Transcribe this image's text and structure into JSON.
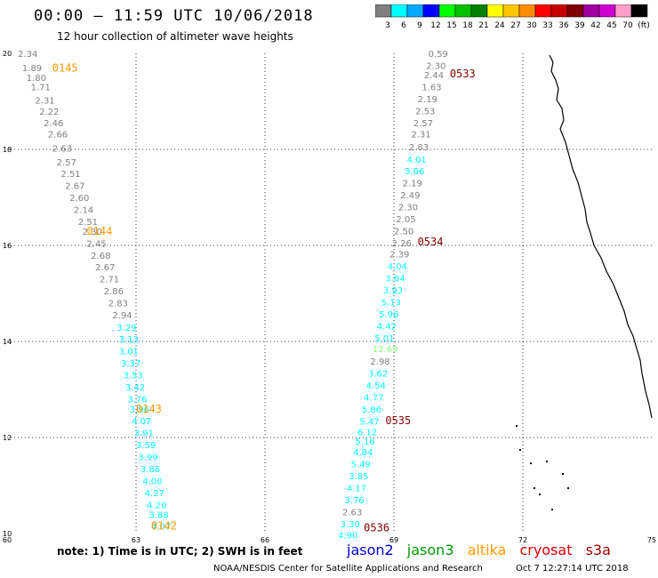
{
  "header": {
    "title": "00:00 — 11:59 UTC 10/06/2018",
    "subtitle": "12 hour collection of altimeter wave heights"
  },
  "color_scale": {
    "labels": [
      "3",
      "6",
      "9",
      "12",
      "15",
      "18",
      "21",
      "24",
      "27",
      "30",
      "33",
      "36",
      "39",
      "42",
      "45",
      "70",
      "(ft)"
    ],
    "colors": [
      "#808080",
      "#00ffff",
      "#00a8ff",
      "#0000ff",
      "#00ff00",
      "#00c000",
      "#008000",
      "#ffff00",
      "#ffc800",
      "#ff8c00",
      "#ff0000",
      "#c80000",
      "#800000",
      "#a000a0",
      "#d000d0",
      "#ff9ec8",
      "#000000"
    ]
  },
  "footer": {
    "note": "note: 1) Time is in UTC; 2) SWH is in feet",
    "credit": "NOAA/NESDIS Center for Satellite Applications and Research",
    "timestamp": "Oct  7 12:27:14 UTC 2018",
    "legend": [
      {
        "name": "jason2",
        "color": "#0000cc"
      },
      {
        "name": "jason3",
        "color": "#009900"
      },
      {
        "name": "altika",
        "color": "#ff9900"
      },
      {
        "name": "cryosat",
        "color": "#dd0000"
      },
      {
        "name": "s3a",
        "color": "#990000"
      }
    ]
  },
  "chart_data": {
    "type": "scatter",
    "title": "00:00 — 11:59 UTC 10/06/2018",
    "subtitle": "12 hour collection of altimeter wave heights",
    "xlim": [
      60,
      75
    ],
    "ylim": [
      10,
      20
    ],
    "x_ticks": [
      "60",
      "63",
      "66",
      "69",
      "72",
      "75"
    ],
    "y_ticks": [
      "10",
      "12",
      "14",
      "16",
      "18",
      "20"
    ],
    "units": "ft",
    "series": [
      {
        "name": "altika",
        "color": "#ff9900",
        "times": [
          {
            "label": "0145",
            "x": 61.05,
            "y": 19.62
          },
          {
            "label": "0144",
            "x": 61.85,
            "y": 16.22
          },
          {
            "label": "0143",
            "x": 63.0,
            "y": 12.52
          },
          {
            "label": "0142",
            "x": 63.35,
            "y": 10.08
          }
        ],
        "points": [
          {
            "x": 60.25,
            "y": 19.93,
            "v": "2.34",
            "c": "#808080"
          },
          {
            "x": 60.35,
            "y": 19.63,
            "v": "1.89",
            "c": "#808080"
          },
          {
            "x": 60.45,
            "y": 19.43,
            "v": "1.80",
            "c": "#808080"
          },
          {
            "x": 60.55,
            "y": 19.23,
            "v": "1.71",
            "c": "#808080"
          },
          {
            "x": 60.65,
            "y": 18.95,
            "v": "2.31",
            "c": "#808080"
          },
          {
            "x": 60.75,
            "y": 18.72,
            "v": "2.22",
            "c": "#808080"
          },
          {
            "x": 60.85,
            "y": 18.48,
            "v": "2.46",
            "c": "#808080"
          },
          {
            "x": 60.95,
            "y": 18.25,
            "v": "2.66",
            "c": "#808080"
          },
          {
            "x": 61.05,
            "y": 17.95,
            "v": "2.63",
            "c": "#808080"
          },
          {
            "x": 61.15,
            "y": 17.67,
            "v": "2.57",
            "c": "#808080"
          },
          {
            "x": 61.25,
            "y": 17.43,
            "v": "2.51",
            "c": "#808080"
          },
          {
            "x": 61.35,
            "y": 17.18,
            "v": "2.67",
            "c": "#808080"
          },
          {
            "x": 61.45,
            "y": 16.93,
            "v": "2.60",
            "c": "#808080"
          },
          {
            "x": 61.55,
            "y": 16.68,
            "v": "2.14",
            "c": "#808080"
          },
          {
            "x": 61.65,
            "y": 16.43,
            "v": "2.51",
            "c": "#808080"
          },
          {
            "x": 61.75,
            "y": 16.22,
            "v": "2.30",
            "c": "#808080"
          },
          {
            "x": 61.85,
            "y": 15.97,
            "v": "2.45",
            "c": "#808080"
          },
          {
            "x": 61.95,
            "y": 15.72,
            "v": "2.68",
            "c": "#808080"
          },
          {
            "x": 62.05,
            "y": 15.48,
            "v": "2.67",
            "c": "#808080"
          },
          {
            "x": 62.15,
            "y": 15.23,
            "v": "2.71",
            "c": "#808080"
          },
          {
            "x": 62.25,
            "y": 14.98,
            "v": "2.86",
            "c": "#808080"
          },
          {
            "x": 62.35,
            "y": 14.73,
            "v": "2.83",
            "c": "#808080"
          },
          {
            "x": 62.45,
            "y": 14.48,
            "v": "2.94",
            "c": "#808080"
          },
          {
            "x": 62.55,
            "y": 14.22,
            "v": "3.29",
            "c": "#00ffff"
          },
          {
            "x": 62.6,
            "y": 13.98,
            "v": "3.13",
            "c": "#00ffff"
          },
          {
            "x": 62.6,
            "y": 13.73,
            "v": "3.01",
            "c": "#00ffff"
          },
          {
            "x": 62.65,
            "y": 13.48,
            "v": "3.37",
            "c": "#00ffff"
          },
          {
            "x": 62.7,
            "y": 13.23,
            "v": "3.53",
            "c": "#00ffff"
          },
          {
            "x": 62.75,
            "y": 12.98,
            "v": "3.42",
            "c": "#00ffff"
          },
          {
            "x": 62.8,
            "y": 12.73,
            "v": "3.76",
            "c": "#00ffff"
          },
          {
            "x": 62.85,
            "y": 12.52,
            "v": "3.96",
            "c": "#00ffff"
          },
          {
            "x": 62.9,
            "y": 12.28,
            "v": "4.07",
            "c": "#00ffff"
          },
          {
            "x": 62.95,
            "y": 12.03,
            "v": "3.91",
            "c": "#00ffff"
          },
          {
            "x": 63.0,
            "y": 11.78,
            "v": "3.59",
            "c": "#00ffff"
          },
          {
            "x": 63.05,
            "y": 11.53,
            "v": "3.99",
            "c": "#00ffff"
          },
          {
            "x": 63.1,
            "y": 11.28,
            "v": "3.86",
            "c": "#00ffff"
          },
          {
            "x": 63.15,
            "y": 11.03,
            "v": "4.00",
            "c": "#00ffff"
          },
          {
            "x": 63.2,
            "y": 10.78,
            "v": "4.27",
            "c": "#00ffff"
          },
          {
            "x": 63.25,
            "y": 10.53,
            "v": "4.20",
            "c": "#00ffff"
          },
          {
            "x": 63.3,
            "y": 10.32,
            "v": "3.88",
            "c": "#00ffff"
          },
          {
            "x": 63.35,
            "y": 10.08,
            "v": "4.07",
            "c": "#00ffff"
          }
        ]
      },
      {
        "name": "s3a",
        "color": "#800000",
        "times": [
          {
            "label": "0533",
            "x": 70.3,
            "y": 19.5
          },
          {
            "label": "0534",
            "x": 69.55,
            "y": 16.0
          },
          {
            "label": "0535",
            "x": 68.8,
            "y": 12.28
          },
          {
            "label": "0536",
            "x": 68.3,
            "y": 10.05
          }
        ],
        "points": [
          {
            "x": 69.8,
            "y": 19.93,
            "v": "0.59",
            "c": "#808080"
          },
          {
            "x": 69.75,
            "y": 19.68,
            "v": "2.30",
            "c": "#808080"
          },
          {
            "x": 69.7,
            "y": 19.48,
            "v": "2.44",
            "c": "#808080"
          },
          {
            "x": 69.65,
            "y": 19.23,
            "v": "1.63",
            "c": "#808080"
          },
          {
            "x": 69.55,
            "y": 18.98,
            "v": "2.19",
            "c": "#808080"
          },
          {
            "x": 69.5,
            "y": 18.73,
            "v": "2.53",
            "c": "#808080"
          },
          {
            "x": 69.45,
            "y": 18.48,
            "v": "2.57",
            "c": "#808080"
          },
          {
            "x": 69.4,
            "y": 18.25,
            "v": "2.31",
            "c": "#808080"
          },
          {
            "x": 69.35,
            "y": 17.98,
            "v": "2.83",
            "c": "#808080"
          },
          {
            "x": 69.3,
            "y": 17.72,
            "v": "4.01",
            "c": "#00ffff"
          },
          {
            "x": 69.25,
            "y": 17.48,
            "v": "3.06",
            "c": "#00ffff"
          },
          {
            "x": 69.2,
            "y": 17.23,
            "v": "2.19",
            "c": "#808080"
          },
          {
            "x": 69.15,
            "y": 16.98,
            "v": "2.49",
            "c": "#808080"
          },
          {
            "x": 69.1,
            "y": 16.73,
            "v": "2.30",
            "c": "#808080"
          },
          {
            "x": 69.05,
            "y": 16.48,
            "v": "2.05",
            "c": "#808080"
          },
          {
            "x": 69.0,
            "y": 16.23,
            "v": "2.50",
            "c": "#808080"
          },
          {
            "x": 68.95,
            "y": 15.98,
            "v": "2.26",
            "c": "#808080"
          },
          {
            "x": 68.9,
            "y": 15.75,
            "v": "2.39",
            "c": "#808080"
          },
          {
            "x": 68.85,
            "y": 15.5,
            "v": "4.04",
            "c": "#00ffff"
          },
          {
            "x": 68.8,
            "y": 15.25,
            "v": "3.84",
            "c": "#00ffff"
          },
          {
            "x": 68.75,
            "y": 15.0,
            "v": "3.93",
            "c": "#00ffff"
          },
          {
            "x": 68.7,
            "y": 14.75,
            "v": "5.13",
            "c": "#00ffff"
          },
          {
            "x": 68.65,
            "y": 14.5,
            "v": "5.96",
            "c": "#00ffff"
          },
          {
            "x": 68.6,
            "y": 14.25,
            "v": "4.42",
            "c": "#00ffff"
          },
          {
            "x": 68.55,
            "y": 14.0,
            "v": "5.01",
            "c": "#00ffff"
          },
          {
            "x": 68.5,
            "y": 13.78,
            "v": "12.69",
            "c": "#80ff80"
          },
          {
            "x": 68.45,
            "y": 13.52,
            "v": "2.98",
            "c": "#808080"
          },
          {
            "x": 68.4,
            "y": 13.27,
            "v": "3.62",
            "c": "#00ffff"
          },
          {
            "x": 68.35,
            "y": 13.02,
            "v": "4.54",
            "c": "#00ffff"
          },
          {
            "x": 68.3,
            "y": 12.77,
            "v": "4.77",
            "c": "#00ffff"
          },
          {
            "x": 68.25,
            "y": 12.52,
            "v": "5.86",
            "c": "#00ffff"
          },
          {
            "x": 68.2,
            "y": 12.27,
            "v": "5.47",
            "c": "#00ffff"
          },
          {
            "x": 68.15,
            "y": 12.05,
            "v": "6.12",
            "c": "#00ffff"
          },
          {
            "x": 68.1,
            "y": 11.85,
            "v": "5.16",
            "c": "#00ffff"
          },
          {
            "x": 68.05,
            "y": 11.63,
            "v": "4.84",
            "c": "#00ffff"
          },
          {
            "x": 68.0,
            "y": 11.38,
            "v": "5.49",
            "c": "#00ffff"
          },
          {
            "x": 67.95,
            "y": 11.13,
            "v": "3.85",
            "c": "#00ffff"
          },
          {
            "x": 67.9,
            "y": 10.88,
            "v": "4.17",
            "c": "#00ffff"
          },
          {
            "x": 67.85,
            "y": 10.63,
            "v": "3.76",
            "c": "#00ffff"
          },
          {
            "x": 67.8,
            "y": 10.38,
            "v": "2.63",
            "c": "#808080"
          },
          {
            "x": 67.75,
            "y": 10.13,
            "v": "3.30",
            "c": "#00ffff"
          },
          {
            "x": 67.7,
            "y": 9.9,
            "v": "4.90",
            "c": "#00ffff"
          },
          {
            "x": 67.65,
            "y": 9.65,
            "v": "2.94",
            "c": "#808080"
          }
        ]
      }
    ]
  }
}
